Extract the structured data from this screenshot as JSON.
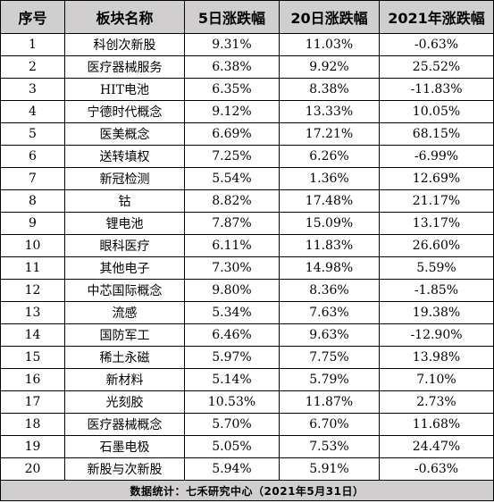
{
  "table": {
    "headers": [
      "序号",
      "板块名称",
      "5日涨跌幅",
      "20日涨跌幅",
      "2021年涨跌幅"
    ],
    "rows": [
      [
        "1",
        "科创次新股",
        "9.31%",
        "11.03%",
        "-0.63%"
      ],
      [
        "2",
        "医疗器械服务",
        "6.38%",
        "9.92%",
        "25.52%"
      ],
      [
        "3",
        "HIT电池",
        "6.35%",
        "8.38%",
        "-11.83%"
      ],
      [
        "4",
        "宁德时代概念",
        "9.12%",
        "13.33%",
        "10.05%"
      ],
      [
        "5",
        "医美概念",
        "6.69%",
        "17.21%",
        "68.15%"
      ],
      [
        "6",
        "送转填权",
        "7.25%",
        "6.26%",
        "-6.99%"
      ],
      [
        "7",
        "新冠检测",
        "5.54%",
        "1.36%",
        "12.69%"
      ],
      [
        "8",
        "钴",
        "8.82%",
        "17.48%",
        "21.17%"
      ],
      [
        "9",
        "锂电池",
        "7.87%",
        "15.09%",
        "13.17%"
      ],
      [
        "10",
        "眼科医疗",
        "6.11%",
        "11.83%",
        "26.60%"
      ],
      [
        "11",
        "其他电子",
        "7.30%",
        "14.98%",
        "5.59%"
      ],
      [
        "12",
        "中芯国际概念",
        "9.80%",
        "8.36%",
        "-1.85%"
      ],
      [
        "13",
        "流感",
        "5.34%",
        "7.63%",
        "19.38%"
      ],
      [
        "14",
        "国防军工",
        "6.46%",
        "9.63%",
        "-12.90%"
      ],
      [
        "15",
        "稀土永磁",
        "5.97%",
        "7.75%",
        "13.98%"
      ],
      [
        "16",
        "新材料",
        "5.14%",
        "5.79%",
        "7.10%"
      ],
      [
        "17",
        "光刻胶",
        "10.53%",
        "11.87%",
        "2.73%"
      ],
      [
        "18",
        "医疗器械概念",
        "5.70%",
        "6.70%",
        "11.68%"
      ],
      [
        "19",
        "石墨电极",
        "5.05%",
        "7.53%",
        "24.47%"
      ],
      [
        "20",
        "新股与次新股",
        "5.94%",
        "5.91%",
        "-0.63%"
      ]
    ],
    "footer": "数据统计：七禾研究中心（2021年5月31日）"
  },
  "colors": {
    "header_bg": "#d0cece",
    "footer_bg": "#d0cece",
    "border": "#000000"
  }
}
